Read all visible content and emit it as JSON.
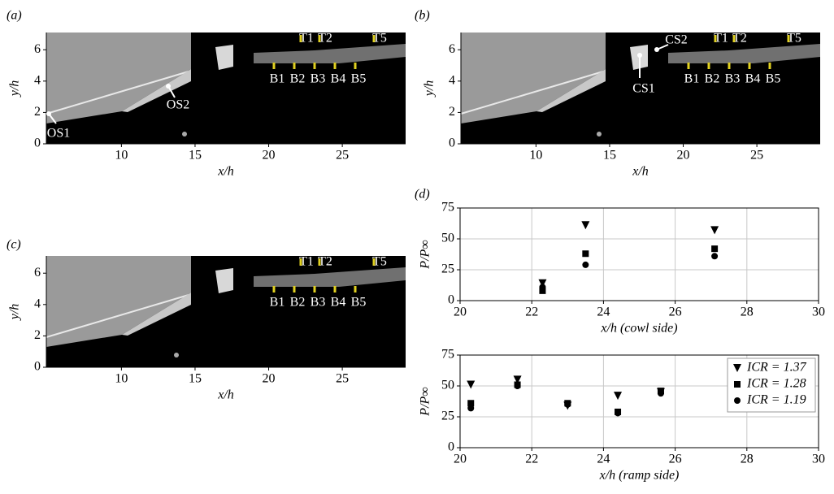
{
  "chart_data": [
    {
      "type": "image",
      "panel_label": "(a)",
      "xlabel": "x/h",
      "ylabel": "y/h",
      "xlim": [
        4.9,
        29.3
      ],
      "ylim": [
        0,
        7.1
      ],
      "xticks": [
        10,
        15,
        20,
        25
      ],
      "yticks": [
        0,
        2,
        4,
        6
      ],
      "top_sensors": [
        "T1",
        "T2",
        "T5"
      ],
      "bottom_sensors": [
        "B1",
        "B2",
        "B3",
        "B4",
        "B5"
      ],
      "annotations": [
        "OS1",
        "OS2"
      ]
    },
    {
      "type": "image",
      "panel_label": "(b)",
      "xlabel": "x/h",
      "ylabel": "y/h",
      "xlim": [
        4.9,
        29.3
      ],
      "ylim": [
        0,
        7.1
      ],
      "xticks": [
        10,
        15,
        20,
        25
      ],
      "yticks": [
        0,
        2,
        4,
        6
      ],
      "top_sensors": [
        "T1",
        "T2",
        "T5"
      ],
      "bottom_sensors": [
        "B1",
        "B2",
        "B3",
        "B4",
        "B5"
      ],
      "annotations": [
        "CS1",
        "CS2"
      ]
    },
    {
      "type": "image",
      "panel_label": "(c)",
      "xlabel": "x/h",
      "ylabel": "y/h",
      "xlim": [
        4.9,
        29.3
      ],
      "ylim": [
        0,
        7.1
      ],
      "xticks": [
        10,
        15,
        20,
        25
      ],
      "yticks": [
        0,
        2,
        4,
        6
      ],
      "top_sensors": [
        "T1",
        "T2",
        "T5"
      ],
      "bottom_sensors": [
        "B1",
        "B2",
        "B3",
        "B4",
        "B5"
      ],
      "annotations": []
    },
    {
      "type": "scatter",
      "panel_label": "(d)",
      "xlabel": "x/h (cowl side)",
      "ylabel": "P/P∞",
      "xlim": [
        20,
        30
      ],
      "ylim": [
        0,
        75
      ],
      "xticks": [
        20,
        22,
        24,
        26,
        28,
        30
      ],
      "yticks": [
        0,
        25,
        50,
        75
      ],
      "grid": true,
      "x": [
        22.3,
        23.5,
        27.1
      ],
      "series": [
        {
          "name": "ICR = 1.37",
          "color": "#000000",
          "marker": "triangle-down",
          "values": [
            14,
            61,
            57
          ]
        },
        {
          "name": "ICR = 1.28",
          "color": "#000000",
          "marker": "square",
          "values": [
            8,
            38,
            42
          ]
        },
        {
          "name": "ICR = 1.19",
          "color": "#000000",
          "marker": "circle",
          "values": [
            11,
            29,
            36
          ]
        }
      ]
    },
    {
      "type": "scatter",
      "xlabel": "x/h (ramp side)",
      "ylabel": "P/P∞",
      "xlim": [
        20,
        30
      ],
      "ylim": [
        0,
        75
      ],
      "xticks": [
        20,
        22,
        24,
        26,
        28,
        30
      ],
      "yticks": [
        0,
        25,
        50,
        75
      ],
      "grid": true,
      "legend": "upper right",
      "x": [
        20.3,
        21.6,
        23.0,
        24.4,
        25.6
      ],
      "series": [
        {
          "name": "ICR = 1.37",
          "color": "#000000",
          "marker": "triangle-down",
          "values": [
            51,
            55,
            34,
            42,
            45
          ]
        },
        {
          "name": "ICR = 1.28",
          "color": "#000000",
          "marker": "square",
          "values": [
            36,
            51,
            36,
            29,
            46
          ]
        },
        {
          "name": "ICR = 1.19",
          "color": "#000000",
          "marker": "circle",
          "values": [
            32,
            50,
            35,
            28,
            44
          ]
        }
      ]
    }
  ]
}
